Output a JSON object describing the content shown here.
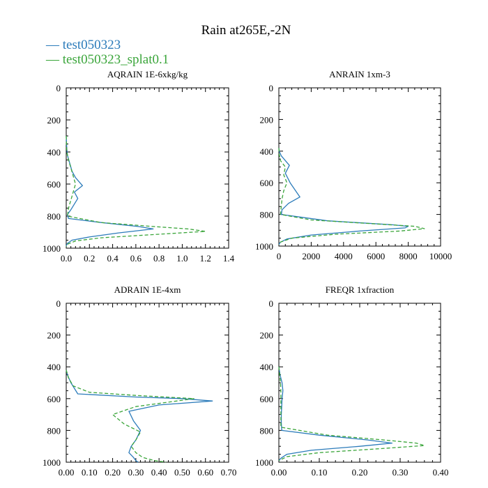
{
  "title": "Rain at265E,-2N",
  "legend": [
    {
      "label": "— test050323",
      "color": "#2b7bba",
      "dashed": false
    },
    {
      "label": "— test050323_splat0.1",
      "color": "#3aa53a",
      "dashed": true
    }
  ],
  "chart_data": [
    {
      "type": "line",
      "title": "AQRAIN  1E-6xkg/kg",
      "xlim": [
        0,
        1.4
      ],
      "ylim": [
        0,
        1000
      ],
      "y_inverted": true,
      "xticks": [
        "0.0",
        "0.2",
        "0.4",
        "0.6",
        "0.8",
        "1.0",
        "1.2",
        "1.4"
      ],
      "xtick_values": [
        0,
        0.2,
        0.4,
        0.6,
        0.8,
        1.0,
        1.2,
        1.4
      ],
      "yticks": [
        "0",
        "200",
        "400",
        "600",
        "800",
        "1000"
      ],
      "ytick_values": [
        0,
        200,
        400,
        600,
        800,
        1000
      ],
      "series": [
        {
          "name": "test050323",
          "x": [
            0,
            0.005,
            0.01,
            0.03,
            0.05,
            0.08,
            0.14,
            0.07,
            0.1,
            0.04,
            0.01,
            0.02,
            0.3,
            0.62,
            0.75,
            0.45,
            0.2,
            0.05,
            0.01,
            0
          ],
          "y": [
            300,
            380,
            420,
            470,
            520,
            560,
            610,
            650,
            690,
            760,
            790,
            815,
            840,
            865,
            880,
            905,
            930,
            950,
            970,
            985
          ]
        },
        {
          "name": "test050323_splat0.1",
          "x": [
            0,
            0.005,
            0.02,
            0.04,
            0.06,
            0.08,
            0.06,
            0.04,
            0.02,
            0.01,
            0.3,
            0.75,
            1.05,
            1.2,
            0.75,
            0.3,
            0.08,
            0.01,
            0
          ],
          "y": [
            300,
            400,
            450,
            500,
            550,
            600,
            650,
            700,
            750,
            800,
            840,
            865,
            880,
            895,
            915,
            935,
            955,
            975,
            990
          ]
        }
      ]
    },
    {
      "type": "line",
      "title": "ANRAIN  1xm-3",
      "xlim": [
        0,
        10000
      ],
      "ylim": [
        0,
        1000
      ],
      "y_inverted": true,
      "xticks": [
        "0",
        "2000",
        "4000",
        "6000",
        "8000",
        "10000"
      ],
      "xtick_values": [
        0,
        2000,
        4000,
        6000,
        8000,
        10000
      ],
      "yticks": [
        "0",
        "200",
        "400",
        "600",
        "800",
        "1000"
      ],
      "ytick_values": [
        0,
        200,
        400,
        600,
        800,
        1000
      ],
      "series": [
        {
          "name": "test050323",
          "x": [
            0,
            20,
            150,
            650,
            400,
            700,
            1300,
            600,
            200,
            150,
            3000,
            7000,
            8000,
            7800,
            5000,
            2000,
            500,
            100,
            0
          ],
          "y": [
            380,
            400,
            430,
            490,
            540,
            600,
            690,
            730,
            770,
            800,
            840,
            865,
            875,
            885,
            905,
            930,
            955,
            975,
            990
          ]
        },
        {
          "name": "test050323_splat0.1",
          "x": [
            0,
            20,
            100,
            400,
            300,
            500,
            300,
            200,
            100,
            2000,
            6000,
            8400,
            9000,
            7500,
            3500,
            800,
            100,
            0
          ],
          "y": [
            380,
            420,
            460,
            500,
            550,
            600,
            650,
            700,
            800,
            835,
            860,
            875,
            890,
            905,
            925,
            950,
            975,
            990
          ]
        }
      ]
    },
    {
      "type": "line",
      "title": "ADRAIN  1E-4xm",
      "xlim": [
        0,
        0.7
      ],
      "ylim": [
        0,
        1000
      ],
      "y_inverted": true,
      "xticks": [
        "0.00",
        "0.10",
        "0.20",
        "0.30",
        "0.40",
        "0.50",
        "0.60",
        "0.70"
      ],
      "xtick_values": [
        0,
        0.1,
        0.2,
        0.3,
        0.4,
        0.5,
        0.6,
        0.7
      ],
      "yticks": [
        "0",
        "200",
        "400",
        "600",
        "800",
        "1000"
      ],
      "ytick_values": [
        0,
        200,
        400,
        600,
        800,
        1000
      ],
      "series": [
        {
          "name": "test050323",
          "x": [
            0,
            0.005,
            0.02,
            0.05,
            0.3,
            0.5,
            0.63,
            0.4,
            0.27,
            0.29,
            0.32,
            0.3,
            0.28,
            0.27,
            0.29,
            0.3,
            0.31
          ],
          "y": [
            420,
            450,
            500,
            570,
            590,
            600,
            615,
            640,
            680,
            740,
            800,
            860,
            900,
            940,
            970,
            990,
            1000
          ]
        },
        {
          "name": "test050323_splat0.1",
          "x": [
            0,
            0.01,
            0.03,
            0.1,
            0.3,
            0.55,
            0.45,
            0.3,
            0.2,
            0.25,
            0.32,
            0.3,
            0.28,
            0.3,
            0.33,
            0.38,
            0.43
          ],
          "y": [
            420,
            470,
            520,
            560,
            580,
            600,
            620,
            650,
            700,
            760,
            810,
            860,
            900,
            940,
            970,
            990,
            1000
          ]
        }
      ]
    },
    {
      "type": "line",
      "title": "FREQR  1xfraction",
      "xlim": [
        0,
        0.4
      ],
      "ylim": [
        0,
        1000
      ],
      "y_inverted": true,
      "xticks": [
        "0.00",
        "0.10",
        "0.20",
        "0.30",
        "0.40"
      ],
      "xtick_values": [
        0,
        0.1,
        0.2,
        0.3,
        0.4
      ],
      "yticks": [
        "0",
        "200",
        "400",
        "600",
        "800",
        "1000"
      ],
      "ytick_values": [
        0,
        200,
        400,
        600,
        800,
        1000
      ],
      "series": [
        {
          "name": "test050323",
          "x": [
            0,
            0.003,
            0.008,
            0.01,
            0.008,
            0.007,
            0.006,
            0.006,
            0.007,
            0.1,
            0.22,
            0.28,
            0.2,
            0.08,
            0.02,
            0.005,
            0
          ],
          "y": [
            400,
            450,
            500,
            550,
            600,
            650,
            700,
            750,
            800,
            830,
            860,
            880,
            900,
            925,
            950,
            975,
            990
          ]
        },
        {
          "name": "test050323_splat0.1",
          "x": [
            0,
            0.002,
            0.004,
            0.005,
            0.005,
            0.005,
            0.005,
            0.005,
            0.12,
            0.26,
            0.34,
            0.36,
            0.25,
            0.1,
            0.02,
            0
          ],
          "y": [
            400,
            450,
            500,
            550,
            600,
            650,
            700,
            780,
            830,
            860,
            880,
            895,
            915,
            940,
            965,
            990
          ]
        }
      ]
    }
  ]
}
